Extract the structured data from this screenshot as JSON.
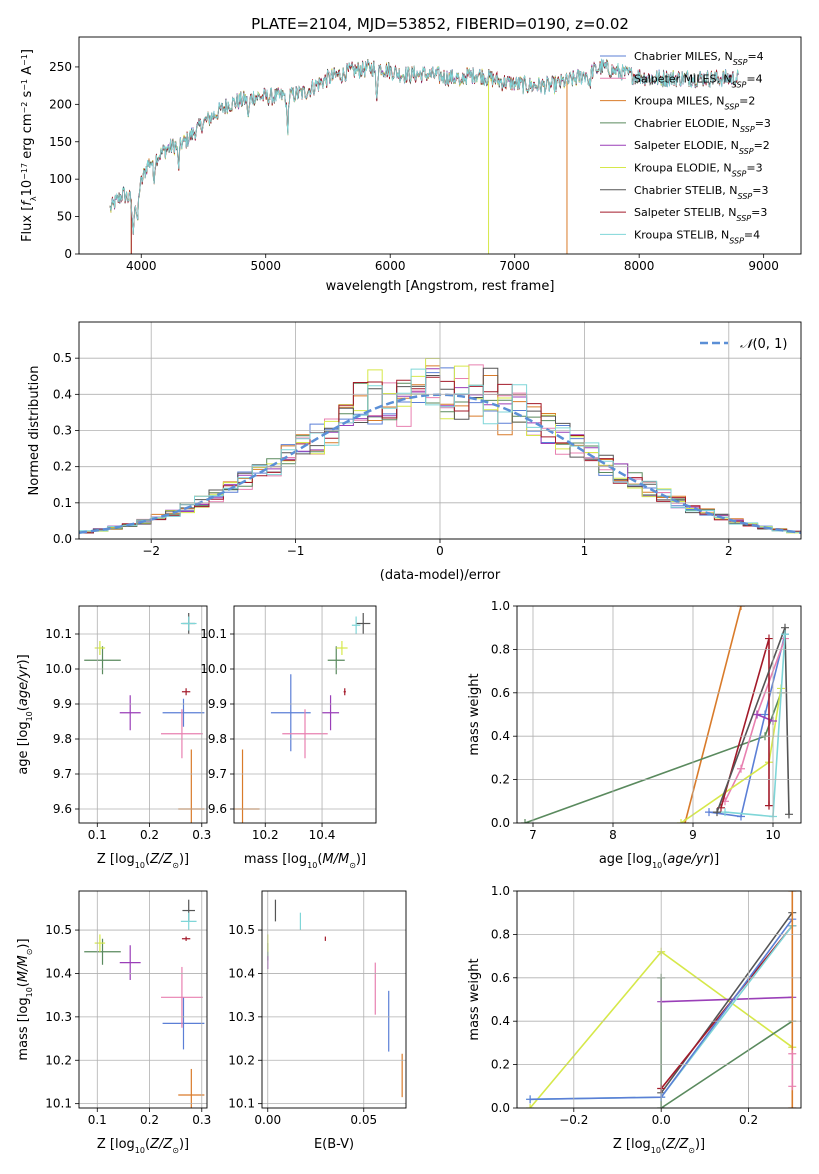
{
  "title": "PLATE=2104, MJD=53852, FIBERID=0190, z=0.02",
  "colors": {
    "Chabrier MILES": "#5b7fd6",
    "Salpeter MILES": "#e880b0",
    "Kroupa MILES": "#d97b2a",
    "Chabrier ELODIE": "#5a8a5e",
    "Salpeter ELODIE": "#9a3fb8",
    "Kroupa ELODIE": "#d6e84a",
    "Chabrier STELIB": "#555555",
    "Salpeter STELIB": "#a31a2a",
    "Kroupa STELIB": "#7fd6d8",
    "normal": "#5b8fd6"
  },
  "chart_data": [
    {
      "id": "spectrum",
      "type": "line",
      "xlabel": "wavelength [Angstrom, rest frame]",
      "ylabel": "Flux [f_λ 10^-17 erg cm^-2 s^-1 A^-1]",
      "xlim": [
        3500,
        9300
      ],
      "ylim": [
        0,
        290
      ],
      "xticks": [
        4000,
        5000,
        6000,
        7000,
        8000,
        9000
      ],
      "yticks": [
        0,
        50,
        100,
        150,
        200,
        250
      ],
      "legend": [
        {
          "name": "Chabrier MILES",
          "nssp": "4"
        },
        {
          "name": "Salpeter MILES",
          "nssp": "4"
        },
        {
          "name": "Kroupa MILES",
          "nssp": "2"
        },
        {
          "name": "Chabrier ELODIE",
          "nssp": "3"
        },
        {
          "name": "Salpeter ELODIE",
          "nssp": "2"
        },
        {
          "name": "Kroupa ELODIE",
          "nssp": "3"
        },
        {
          "name": "Chabrier STELIB",
          "nssp": "3"
        },
        {
          "name": "Salpeter STELIB",
          "nssp": "3"
        },
        {
          "name": "Kroupa STELIB",
          "nssp": "4"
        }
      ],
      "continuum": [
        [
          3750,
          60
        ],
        [
          3850,
          80
        ],
        [
          3950,
          70
        ],
        [
          4050,
          120
        ],
        [
          4200,
          140
        ],
        [
          4350,
          150
        ],
        [
          4500,
          175
        ],
        [
          4700,
          200
        ],
        [
          4900,
          210
        ],
        [
          5100,
          210
        ],
        [
          5300,
          215
        ],
        [
          5500,
          235
        ],
        [
          5700,
          245
        ],
        [
          5900,
          250
        ],
        [
          6100,
          240
        ],
        [
          6300,
          240
        ],
        [
          6500,
          235
        ],
        [
          6700,
          240
        ],
        [
          6900,
          230
        ],
        [
          7100,
          225
        ],
        [
          7300,
          225
        ],
        [
          7500,
          235
        ],
        [
          7700,
          250
        ],
        [
          7900,
          240
        ],
        [
          8100,
          235
        ],
        [
          8300,
          235
        ],
        [
          8500,
          235
        ],
        [
          8800,
          235
        ]
      ],
      "cutoffs": [
        {
          "series": "Kroupa ELODIE",
          "x": 3920
        },
        {
          "series": "Kroupa ELODIE",
          "x": 6790
        },
        {
          "series": "Kroupa MILES",
          "x": 7420
        },
        {
          "series": "Salpeter STELIB",
          "x": 3920
        }
      ]
    },
    {
      "id": "residuals",
      "type": "histogram",
      "xlabel": "(data-model)/error",
      "ylabel": "Normed distribution",
      "xlim": [
        -2.5,
        2.5
      ],
      "ylim": [
        0,
        0.6
      ],
      "xticks": [
        -2,
        -1,
        0,
        1,
        2
      ],
      "yticks": [
        0.0,
        0.1,
        0.2,
        0.3,
        0.4,
        0.5
      ],
      "legend": "N(0,1)"
    },
    {
      "id": "age-vs-Z",
      "type": "scatter",
      "xlabel": "Z [log10(Z/Z⊙)]",
      "ylabel": "age [log10(age/yr)]",
      "xlim": [
        0.065,
        0.31
      ],
      "ylim": [
        9.56,
        10.18
      ],
      "xticks": [
        0.1,
        0.2,
        0.3
      ],
      "yticks": [
        9.6,
        9.7,
        9.8,
        9.9,
        10.0,
        10.1
      ],
      "points": [
        {
          "s": "Chabrier MILES",
          "x": 0.265,
          "y": 9.875,
          "xe": 0.04,
          "ye": 0.04
        },
        {
          "s": "Salpeter MILES",
          "x": 0.262,
          "y": 9.815,
          "xe": 0.04,
          "ye": 0.07
        },
        {
          "s": "Kroupa MILES",
          "x": 0.28,
          "y": 9.6,
          "xe": 0.025,
          "ye": 0.17
        },
        {
          "s": "Chabrier ELODIE",
          "x": 0.11,
          "y": 10.025,
          "xe": 0.035,
          "ye": 0.04
        },
        {
          "s": "Salpeter ELODIE",
          "x": 0.163,
          "y": 9.875,
          "xe": 0.02,
          "ye": 0.05
        },
        {
          "s": "Kroupa ELODIE",
          "x": 0.105,
          "y": 10.06,
          "xe": 0.01,
          "ye": 0.02
        },
        {
          "s": "Chabrier STELIB",
          "x": 0.275,
          "y": 10.13,
          "xe": 0.012,
          "ye": 0.03
        },
        {
          "s": "Salpeter STELIB",
          "x": 0.27,
          "y": 9.935,
          "xe": 0.008,
          "ye": 0.01
        },
        {
          "s": "Kroupa STELIB",
          "x": 0.275,
          "y": 10.13,
          "xe": 0.015,
          "ye": 0.02
        }
      ]
    },
    {
      "id": "age-vs-mass",
      "type": "scatter",
      "xlabel": "mass [log10(M/M⊙)]",
      "ylabel": "",
      "xlim": [
        10.09,
        10.59
      ],
      "ylim": [
        9.56,
        10.18
      ],
      "xticks": [
        10.2,
        10.4
      ],
      "yticks": [
        9.6,
        9.7,
        9.8,
        9.9,
        10.0,
        10.1
      ],
      "points": [
        {
          "s": "Chabrier MILES",
          "x": 10.29,
          "y": 9.875,
          "xe": 0.07,
          "ye": 0.11
        },
        {
          "s": "Salpeter MILES",
          "x": 10.34,
          "y": 9.815,
          "xe": 0.08,
          "ye": 0.07
        },
        {
          "s": "Kroupa MILES",
          "x": 10.12,
          "y": 9.6,
          "xe": 0.06,
          "ye": 0.17
        },
        {
          "s": "Chabrier ELODIE",
          "x": 10.45,
          "y": 10.025,
          "xe": 0.03,
          "ye": 0.04
        },
        {
          "s": "Salpeter ELODIE",
          "x": 10.43,
          "y": 9.875,
          "xe": 0.03,
          "ye": 0.05
        },
        {
          "s": "Kroupa ELODIE",
          "x": 10.47,
          "y": 10.06,
          "xe": 0.02,
          "ye": 0.02
        },
        {
          "s": "Chabrier STELIB",
          "x": 10.545,
          "y": 10.13,
          "xe": 0.025,
          "ye": 0.03
        },
        {
          "s": "Salpeter STELIB",
          "x": 10.48,
          "y": 9.935,
          "xe": 0.004,
          "ye": 0.01
        },
        {
          "s": "Kroupa STELIB",
          "x": 10.52,
          "y": 10.125,
          "xe": 0.015,
          "ye": 0.025
        }
      ]
    },
    {
      "id": "weight-vs-age",
      "type": "line",
      "xlabel": "age [log10(age/yr)]",
      "ylabel": "mass weight",
      "xlim": [
        6.8,
        10.35
      ],
      "ylim": [
        0,
        1
      ],
      "xticks": [
        7,
        8,
        9,
        10
      ],
      "yticks": [
        0.0,
        0.2,
        0.4,
        0.6,
        0.8,
        1.0
      ],
      "series": [
        {
          "name": "Kroupa MILES",
          "points": [
            [
              8.9,
              0.0
            ],
            [
              9.6,
              1.0
            ]
          ]
        },
        {
          "name": "Chabrier ELODIE",
          "points": [
            [
              6.9,
              0.0
            ],
            [
              9.9,
              0.4
            ],
            [
              10.1,
              0.6
            ]
          ]
        },
        {
          "name": "Chabrier MILES",
          "points": [
            [
              9.2,
              0.05
            ],
            [
              9.6,
              0.03
            ],
            [
              9.9,
              0.5
            ],
            [
              10.15,
              0.87
            ]
          ]
        },
        {
          "name": "Salpeter MILES",
          "points": [
            [
              9.4,
              0.1
            ],
            [
              9.6,
              0.25
            ],
            [
              9.8,
              0.5
            ],
            [
              10.15,
              0.85
            ]
          ]
        },
        {
          "name": "Kroupa ELODIE",
          "points": [
            [
              8.85,
              0.0
            ],
            [
              9.95,
              0.28
            ],
            [
              10.1,
              0.62
            ]
          ]
        },
        {
          "name": "Salpeter ELODIE",
          "points": [
            [
              9.8,
              0.5
            ],
            [
              10.0,
              0.47
            ]
          ]
        },
        {
          "name": "Salpeter STELIB",
          "points": [
            [
              9.35,
              0.07
            ],
            [
              9.95,
              0.85
            ],
            [
              9.95,
              0.08
            ]
          ]
        },
        {
          "name": "Chabrier STELIB",
          "points": [
            [
              9.3,
              0.05
            ],
            [
              10.15,
              0.9
            ],
            [
              10.2,
              0.04
            ]
          ]
        },
        {
          "name": "Kroupa STELIB",
          "points": [
            [
              9.4,
              0.05
            ],
            [
              10.0,
              0.03
            ],
            [
              10.15,
              0.87
            ]
          ]
        }
      ]
    },
    {
      "id": "mass-vs-Z",
      "type": "scatter",
      "xlabel": "Z [log10(Z/Z⊙)]",
      "ylabel": "mass [log10(M/M⊙)]",
      "xlim": [
        0.065,
        0.31
      ],
      "ylim": [
        10.09,
        10.59
      ],
      "xticks": [
        0.1,
        0.2,
        0.3
      ],
      "yticks": [
        10.1,
        10.2,
        10.3,
        10.4,
        10.5
      ],
      "points": [
        {
          "s": "Chabrier MILES",
          "x": 0.265,
          "y": 10.285,
          "xe": 0.04,
          "ye": 0.06
        },
        {
          "s": "Salpeter MILES",
          "x": 0.262,
          "y": 10.345,
          "xe": 0.04,
          "ye": 0.07
        },
        {
          "s": "Kroupa MILES",
          "x": 0.28,
          "y": 10.12,
          "xe": 0.025,
          "ye": 0.06
        },
        {
          "s": "Chabrier ELODIE",
          "x": 0.11,
          "y": 10.45,
          "xe": 0.035,
          "ye": 0.03
        },
        {
          "s": "Salpeter ELODIE",
          "x": 0.163,
          "y": 10.425,
          "xe": 0.02,
          "ye": 0.04
        },
        {
          "s": "Kroupa ELODIE",
          "x": 0.105,
          "y": 10.47,
          "xe": 0.01,
          "ye": 0.02
        },
        {
          "s": "Chabrier STELIB",
          "x": 0.275,
          "y": 10.545,
          "xe": 0.012,
          "ye": 0.025
        },
        {
          "s": "Salpeter STELIB",
          "x": 0.27,
          "y": 10.48,
          "xe": 0.008,
          "ye": 0.005
        },
        {
          "s": "Kroupa STELIB",
          "x": 0.275,
          "y": 10.52,
          "xe": 0.015,
          "ye": 0.02
        }
      ]
    },
    {
      "id": "mass-vs-ebv",
      "type": "scatter",
      "xlabel": "E(B-V)",
      "ylabel": "",
      "xlim": [
        -0.003,
        0.072
      ],
      "ylim": [
        10.09,
        10.59
      ],
      "xticks": [
        0.0,
        0.05
      ],
      "yticks": [
        10.1,
        10.2,
        10.3,
        10.4,
        10.5
      ],
      "points": [
        {
          "s": "Chabrier MILES",
          "x": 0.063,
          "y": 10.29,
          "xe": 0.0,
          "ye": 0.07
        },
        {
          "s": "Salpeter MILES",
          "x": 0.056,
          "y": 10.365,
          "xe": 0.0,
          "ye": 0.06
        },
        {
          "s": "Kroupa MILES",
          "x": 0.07,
          "y": 10.165,
          "xe": 0.0,
          "ye": 0.05
        },
        {
          "s": "Chabrier ELODIE",
          "x": 0.0,
          "y": 10.45,
          "xe": 0.0,
          "ye": 0.02
        },
        {
          "s": "Salpeter ELODIE",
          "x": 0.0,
          "y": 10.425,
          "xe": 0.0,
          "ye": 0.015
        },
        {
          "s": "Kroupa ELODIE",
          "x": 0.0,
          "y": 10.47,
          "xe": 0.0,
          "ye": 0.02
        },
        {
          "s": "Chabrier STELIB",
          "x": 0.004,
          "y": 10.545,
          "xe": 0.0,
          "ye": 0.025
        },
        {
          "s": "Salpeter STELIB",
          "x": 0.03,
          "y": 10.48,
          "xe": 0.0,
          "ye": 0.005
        },
        {
          "s": "Kroupa STELIB",
          "x": 0.017,
          "y": 10.52,
          "xe": 0.0,
          "ye": 0.02
        }
      ]
    },
    {
      "id": "weight-vs-Z",
      "type": "line",
      "xlabel": "Z [log10(Z/Z⊙)]",
      "ylabel": "mass weight",
      "xlim": [
        -0.33,
        0.32
      ],
      "ylim": [
        0,
        1
      ],
      "xticks": [
        -0.2,
        0.0,
        0.2
      ],
      "yticks": [
        0.0,
        0.2,
        0.4,
        0.6,
        0.8,
        1.0
      ],
      "series": [
        {
          "name": "Kroupa ELODIE",
          "points": [
            [
              -0.3,
              0.0
            ],
            [
              0.0,
              0.72
            ],
            [
              0.3,
              0.28
            ]
          ]
        },
        {
          "name": "Chabrier ELODIE",
          "points": [
            [
              0.0,
              0.6
            ],
            [
              0.0,
              0.0
            ],
            [
              0.3,
              0.4
            ]
          ]
        },
        {
          "name": "Salpeter ELODIE",
          "points": [
            [
              0.0,
              0.49
            ],
            [
              0.3,
              0.51
            ]
          ]
        },
        {
          "name": "Chabrier STELIB",
          "points": [
            [
              0.0,
              0.07
            ],
            [
              0.3,
              0.9
            ]
          ]
        },
        {
          "name": "Salpeter STELIB",
          "points": [
            [
              0.0,
              0.09
            ],
            [
              0.3,
              0.84
            ]
          ]
        },
        {
          "name": "Kroupa STELIB",
          "points": [
            [
              -0.3,
              0.04
            ],
            [
              0.0,
              0.05
            ],
            [
              0.3,
              0.84
            ]
          ]
        },
        {
          "name": "Chabrier MILES",
          "points": [
            [
              -0.3,
              0.04
            ],
            [
              0.0,
              0.05
            ],
            [
              0.3,
              0.87
            ]
          ]
        },
        {
          "name": "Kroupa MILES",
          "points": [
            [
              0.3,
              0.0
            ],
            [
              0.3,
              1.0
            ]
          ]
        },
        {
          "name": "Salpeter MILES",
          "points": [
            [
              0.3,
              0.1
            ],
            [
              0.3,
              0.25
            ]
          ]
        }
      ]
    }
  ]
}
